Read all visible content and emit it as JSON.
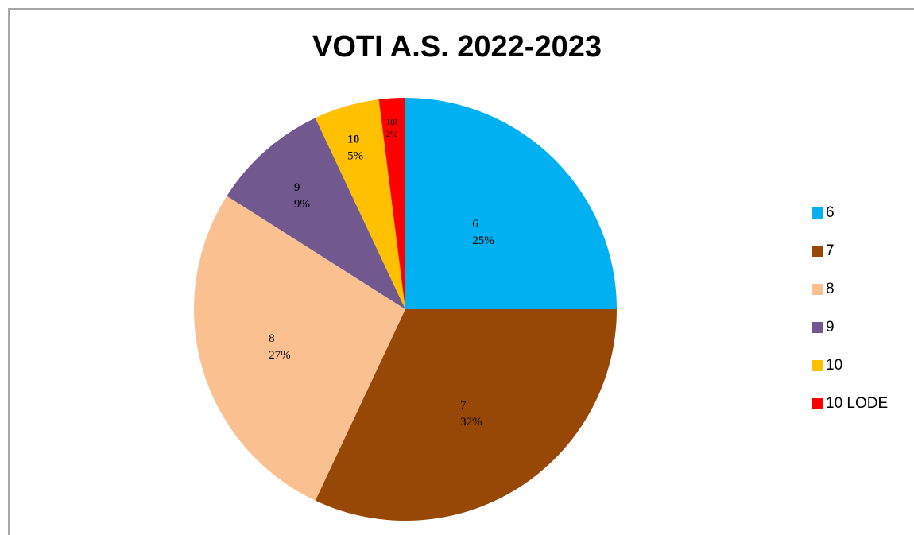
{
  "chart_data": {
    "type": "pie",
    "title": "VOTI A.S. 2022-2023",
    "legend_position": "right",
    "slices": [
      {
        "label": "6",
        "percent": 25,
        "percent_label": "25%",
        "slice_label": "6",
        "color": "#00b0f0"
      },
      {
        "label": "7",
        "percent": 32,
        "percent_label": "32%",
        "slice_label": "7",
        "color": "#974706"
      },
      {
        "label": "8",
        "percent": 27,
        "percent_label": "27%",
        "slice_label": "8",
        "color": "#fac090"
      },
      {
        "label": "9",
        "percent": 9,
        "percent_label": "9%",
        "slice_label": "9",
        "color": "#71588f"
      },
      {
        "label": "10",
        "percent": 5,
        "percent_label": "5%",
        "slice_label": "10",
        "color": "#ffc000"
      },
      {
        "label": "10 LODE",
        "percent": 2,
        "percent_label": "2%",
        "slice_label": "10l",
        "color": "#ff0000"
      }
    ]
  }
}
